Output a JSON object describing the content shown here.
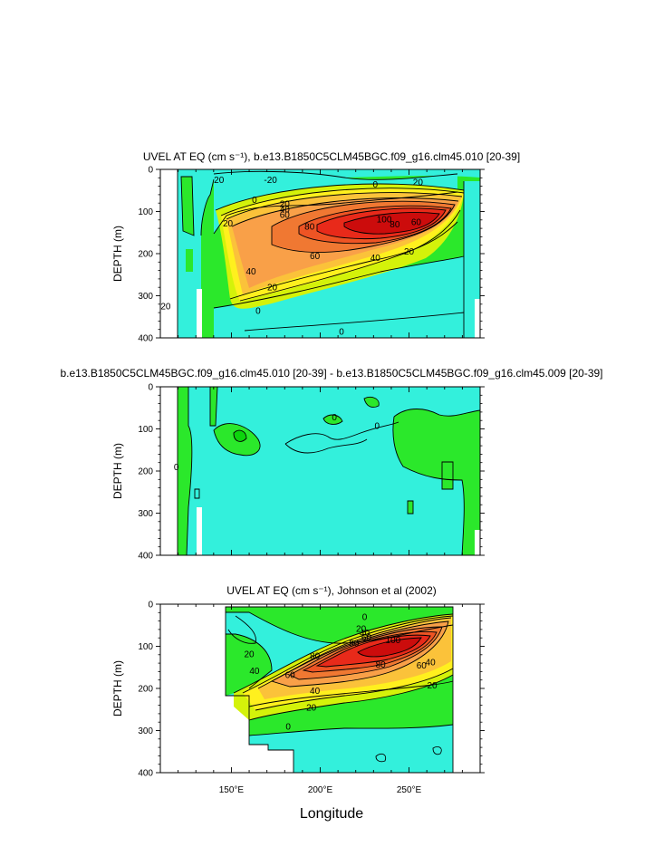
{
  "chart_data": [
    {
      "type": "heatmap",
      "title": "UVEL AT EQ (cm s⁻¹), b.e13.B1850C5CLM45BGC.f09_g16.clm45.010 [20-39]",
      "xlabel": "",
      "ylabel": "DEPTH (m)",
      "xlim": [
        110,
        290
      ],
      "ylim": [
        400,
        0
      ],
      "yticks": [
        "0",
        "100",
        "200",
        "300",
        "400"
      ],
      "contour_labels": [
        {
          "text": "20",
          "lon": 143,
          "depth": 25
        },
        {
          "text": "0",
          "lon": 163,
          "depth": 72
        },
        {
          "text": "-20",
          "lon": 172,
          "depth": 25
        },
        {
          "text": "0",
          "lon": 231,
          "depth": 35
        },
        {
          "text": "20",
          "lon": 255,
          "depth": 30
        },
        {
          "text": "20",
          "lon": 180,
          "depth": 82
        },
        {
          "text": "40",
          "lon": 180,
          "depth": 95
        },
        {
          "text": "60",
          "lon": 180,
          "depth": 108
        },
        {
          "text": "80",
          "lon": 194,
          "depth": 135
        },
        {
          "text": "100",
          "lon": 236,
          "depth": 118
        },
        {
          "text": "80",
          "lon": 242,
          "depth": 130
        },
        {
          "text": "60",
          "lon": 254,
          "depth": 125
        },
        {
          "text": "60",
          "lon": 197,
          "depth": 205
        },
        {
          "text": "40",
          "lon": 231,
          "depth": 210
        },
        {
          "text": "20",
          "lon": 250,
          "depth": 195
        },
        {
          "text": "20",
          "lon": 148,
          "depth": 128
        },
        {
          "text": "40",
          "lon": 161,
          "depth": 242
        },
        {
          "text": "20",
          "lon": 173,
          "depth": 280
        },
        {
          "text": "20",
          "lon": 113,
          "depth": 325
        },
        {
          "text": "0",
          "lon": 165,
          "depth": 335
        },
        {
          "text": "0",
          "lon": 212,
          "depth": 385
        }
      ]
    },
    {
      "type": "heatmap",
      "title": "b.e13.B1850C5CLM45BGC.f09_g16.clm45.010 [20-39] - b.e13.B1850C5CLM45BGC.f09_g16.clm45.009 [20-39]",
      "xlabel": "",
      "ylabel": "DEPTH (m)",
      "xlim": [
        110,
        290
      ],
      "ylim": [
        400,
        0
      ],
      "yticks": [
        "0",
        "100",
        "200",
        "300",
        "400"
      ],
      "contour_labels": [
        {
          "text": "0",
          "lon": 208,
          "depth": 72
        },
        {
          "text": "0",
          "lon": 232,
          "depth": 92
        },
        {
          "text": "0",
          "lon": 119,
          "depth": 190
        }
      ]
    },
    {
      "type": "heatmap",
      "title": "UVEL AT EQ (cm s⁻¹), Johnson et al (2002)",
      "xlabel": "Longitude",
      "ylabel": "DEPTH (m)",
      "xlim": [
        110,
        290
      ],
      "ylim": [
        400,
        0
      ],
      "xticks": [
        "150°E",
        "200°E",
        "250°E"
      ],
      "yticks": [
        "0",
        "100",
        "200",
        "300",
        "400"
      ],
      "contour_labels": [
        {
          "text": "0",
          "lon": 225,
          "depth": 30
        },
        {
          "text": "20",
          "lon": 223,
          "depth": 58
        },
        {
          "text": "40",
          "lon": 225,
          "depth": 68
        },
        {
          "text": "60",
          "lon": 226,
          "depth": 79
        },
        {
          "text": "80",
          "lon": 219,
          "depth": 92
        },
        {
          "text": "100",
          "lon": 241,
          "depth": 85
        },
        {
          "text": "20",
          "lon": 160,
          "depth": 118
        },
        {
          "text": "40",
          "lon": 163,
          "depth": 158
        },
        {
          "text": "60",
          "lon": 183,
          "depth": 168
        },
        {
          "text": "80",
          "lon": 197,
          "depth": 123
        },
        {
          "text": "80",
          "lon": 234,
          "depth": 143
        },
        {
          "text": "60",
          "lon": 257,
          "depth": 145
        },
        {
          "text": "40",
          "lon": 197,
          "depth": 205
        },
        {
          "text": "40",
          "lon": 262,
          "depth": 138
        },
        {
          "text": "20",
          "lon": 195,
          "depth": 245
        },
        {
          "text": "20",
          "lon": 263,
          "depth": 192
        },
        {
          "text": "0",
          "lon": 182,
          "depth": 290
        }
      ]
    }
  ]
}
